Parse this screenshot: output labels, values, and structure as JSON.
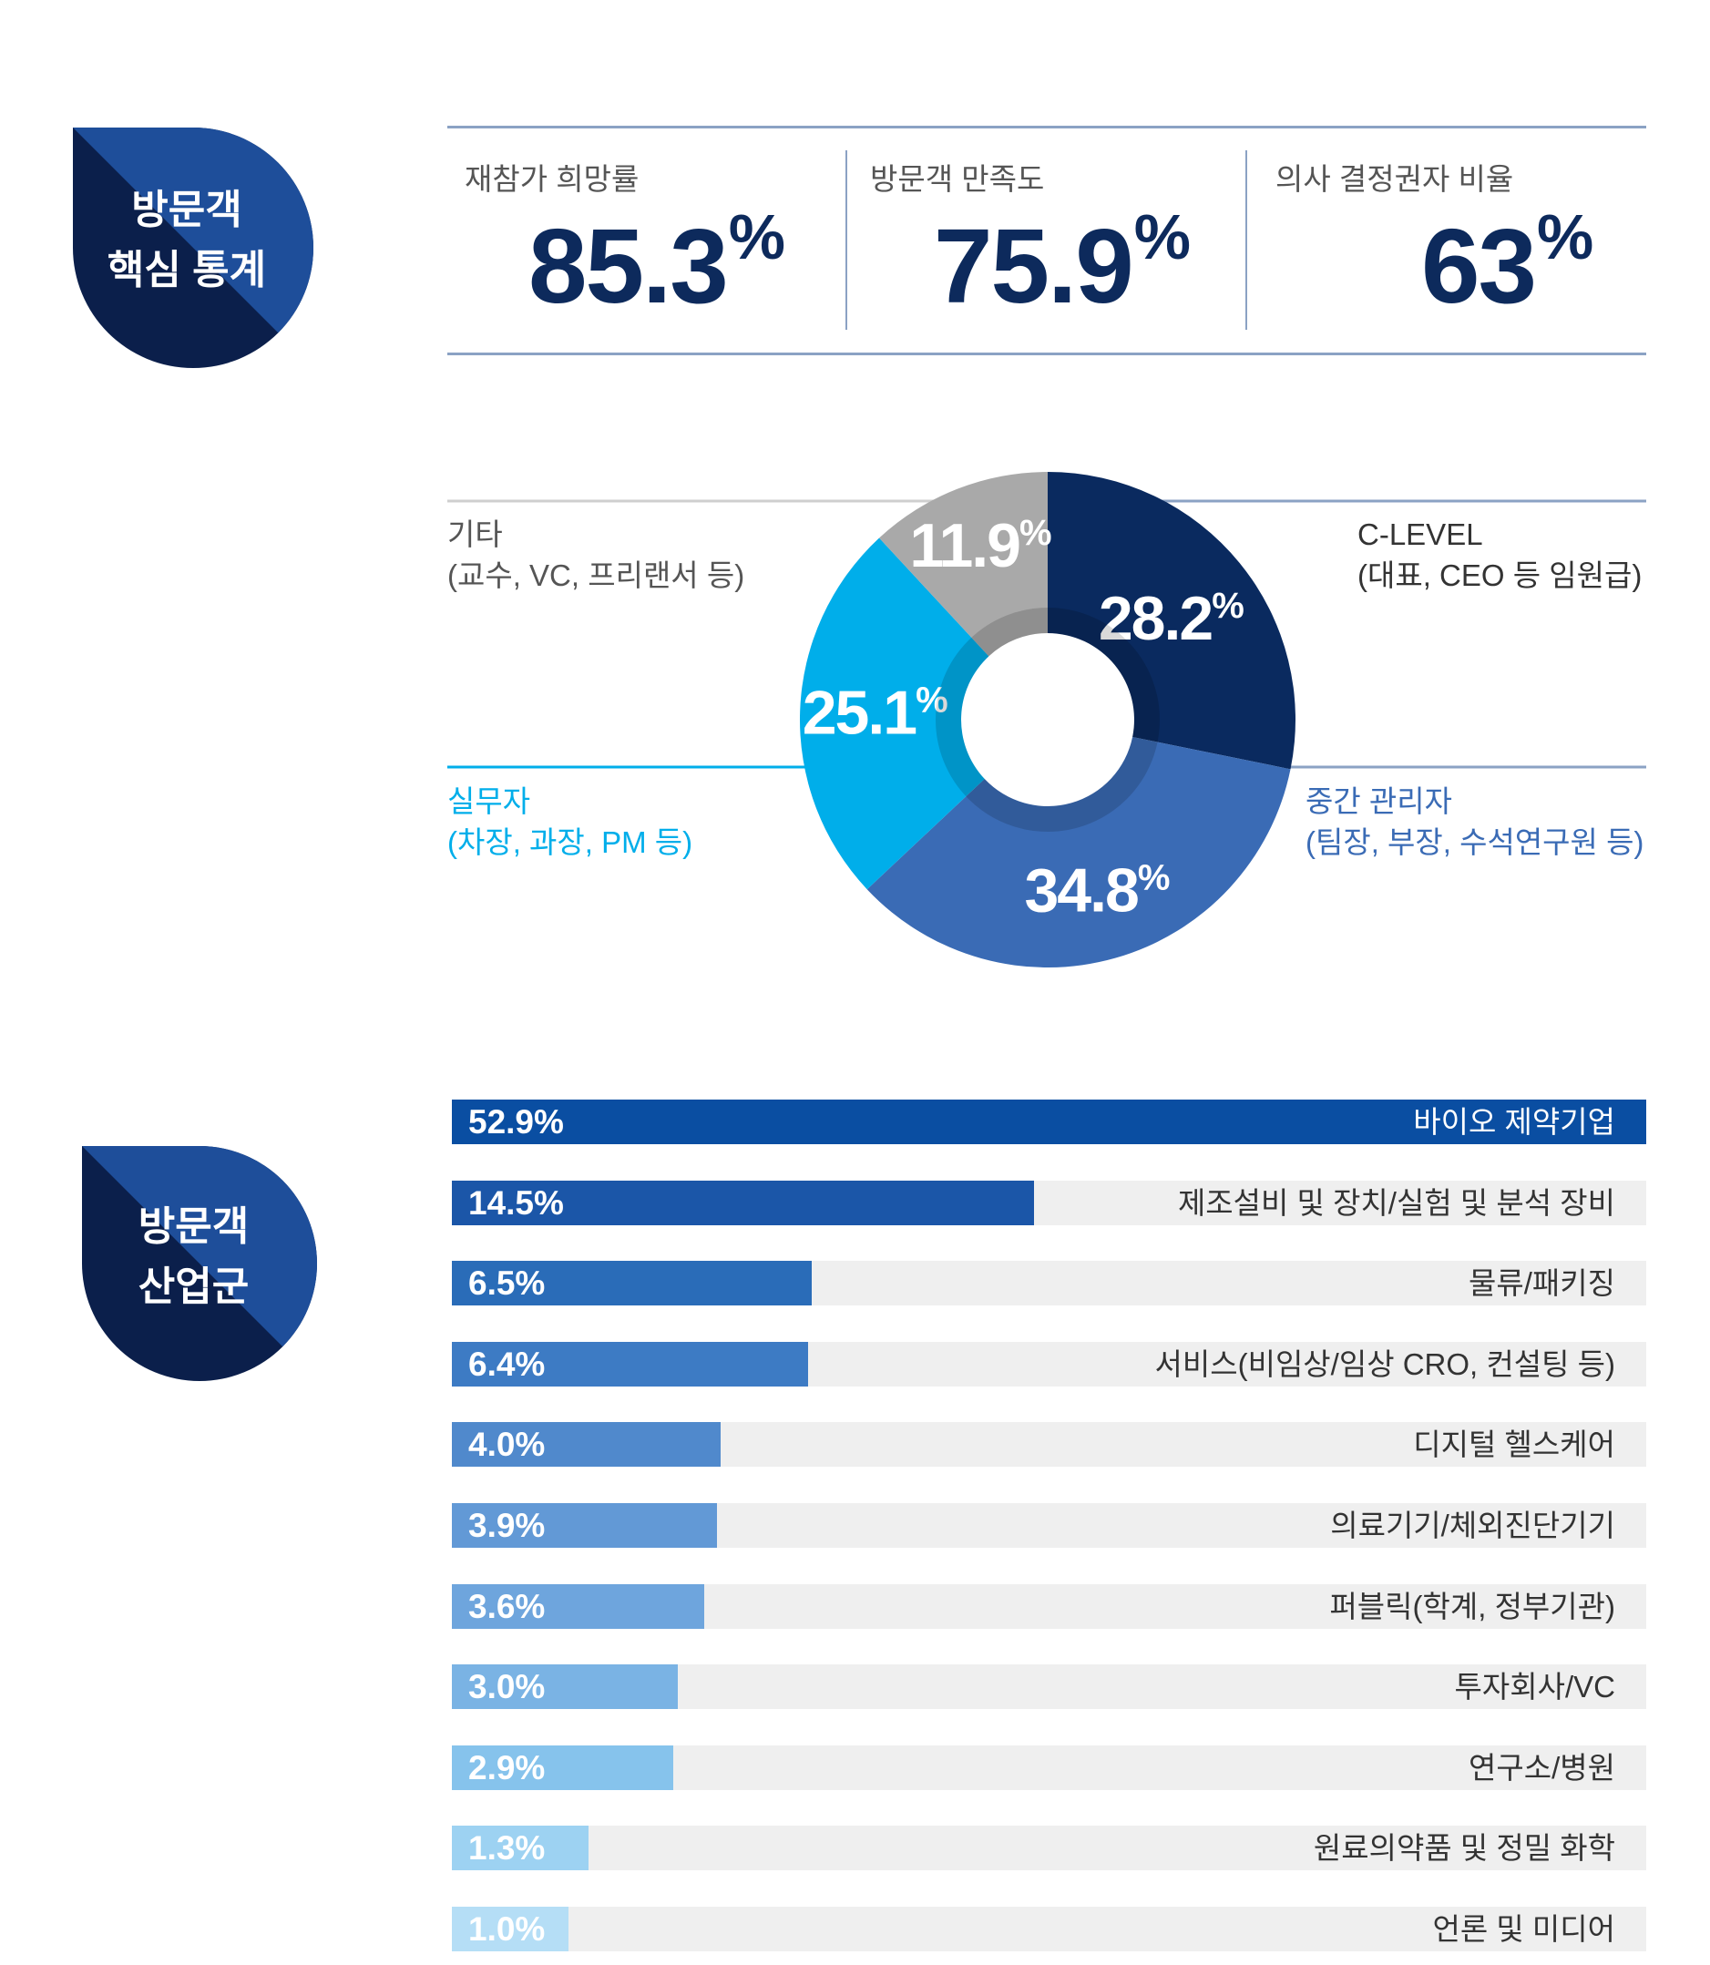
{
  "section1": {
    "title_line1": "방문객",
    "title_line2": "핵심 통계"
  },
  "stats": [
    {
      "label": "재참가 희망률",
      "value": "85.3",
      "unit": "%"
    },
    {
      "label": "방문객 만족도",
      "value": "75.9",
      "unit": "%"
    },
    {
      "label": "의사 결정권자 비율",
      "value": "63",
      "unit": "%"
    }
  ],
  "section2": {
    "title_line1": "방문객",
    "title_line2": "산업군"
  },
  "colors": {
    "navy": "#0d2a5c",
    "badge_dark": "#0b1f4b",
    "badge_light": "#1e4e9a",
    "donut_clevel": "#0a2a5f",
    "donut_mid": "#3a6bb5",
    "donut_staff": "#00aeea",
    "donut_other": "#a9a9a9"
  },
  "chart_data": [
    {
      "type": "pie",
      "variant": "donut",
      "slices": [
        {
          "name": "C-LEVEL",
          "sub": "(대표, CEO 등 임원급)",
          "value": 28.2,
          "label": "28.2",
          "unit": "%",
          "color": "#0a2a5f",
          "label_color": "#333333"
        },
        {
          "name": "중간 관리자",
          "sub": "(팀장, 부장, 수석연구원 등)",
          "value": 34.8,
          "label": "34.8",
          "unit": "%",
          "color": "#3a6bb5",
          "label_color": "#3a6bb5"
        },
        {
          "name": "실무자",
          "sub": "(차장, 과장, PM 등)",
          "value": 25.1,
          "label": "25.1",
          "unit": "%",
          "color": "#00aeea",
          "label_color": "#00aeea"
        },
        {
          "name": "기타",
          "sub": "(교수, VC, 프리랜서 등)",
          "value": 11.9,
          "label": "11.9",
          "unit": "%",
          "color": "#a9a9a9",
          "label_color": "#555555"
        }
      ]
    },
    {
      "type": "bar",
      "orientation": "horizontal",
      "xlim": [
        0,
        52.9
      ],
      "bars": [
        {
          "category": "바이오 제약기업",
          "value": 52.9,
          "label": "52.9%",
          "color": "#0a4ea2"
        },
        {
          "category": "제조설비 및 장치/실험 및 분석 장비",
          "value": 14.5,
          "label": "14.5%",
          "color": "#1b56a8"
        },
        {
          "category": "물류/패키징",
          "value": 6.5,
          "label": "6.5%",
          "color": "#2a6cb8"
        },
        {
          "category": "서비스(비임상/임상 CRO, 컨설팅 등)",
          "value": 6.4,
          "label": "6.4%",
          "color": "#3d7bc4"
        },
        {
          "category": "디지털 헬스케어",
          "value": 4.0,
          "label": "4.0%",
          "color": "#5089cc"
        },
        {
          "category": "의료기기/체외진단기기",
          "value": 3.9,
          "label": "3.9%",
          "color": "#6299d6"
        },
        {
          "category": "퍼블릭(학계, 정부기관)",
          "value": 3.6,
          "label": "3.6%",
          "color": "#6ea5dd"
        },
        {
          "category": "투자회사/VC",
          "value": 3.0,
          "label": "3.0%",
          "color": "#7ab3e4"
        },
        {
          "category": "연구소/병원",
          "value": 2.9,
          "label": "2.9%",
          "color": "#86c3ec"
        },
        {
          "category": "원료의약품 및 정밀 화학",
          "value": 1.3,
          "label": "1.3%",
          "color": "#9dd2f2"
        },
        {
          "category": "언론 및 미디어",
          "value": 1.0,
          "label": "1.0%",
          "color": "#b5def6"
        }
      ]
    }
  ]
}
